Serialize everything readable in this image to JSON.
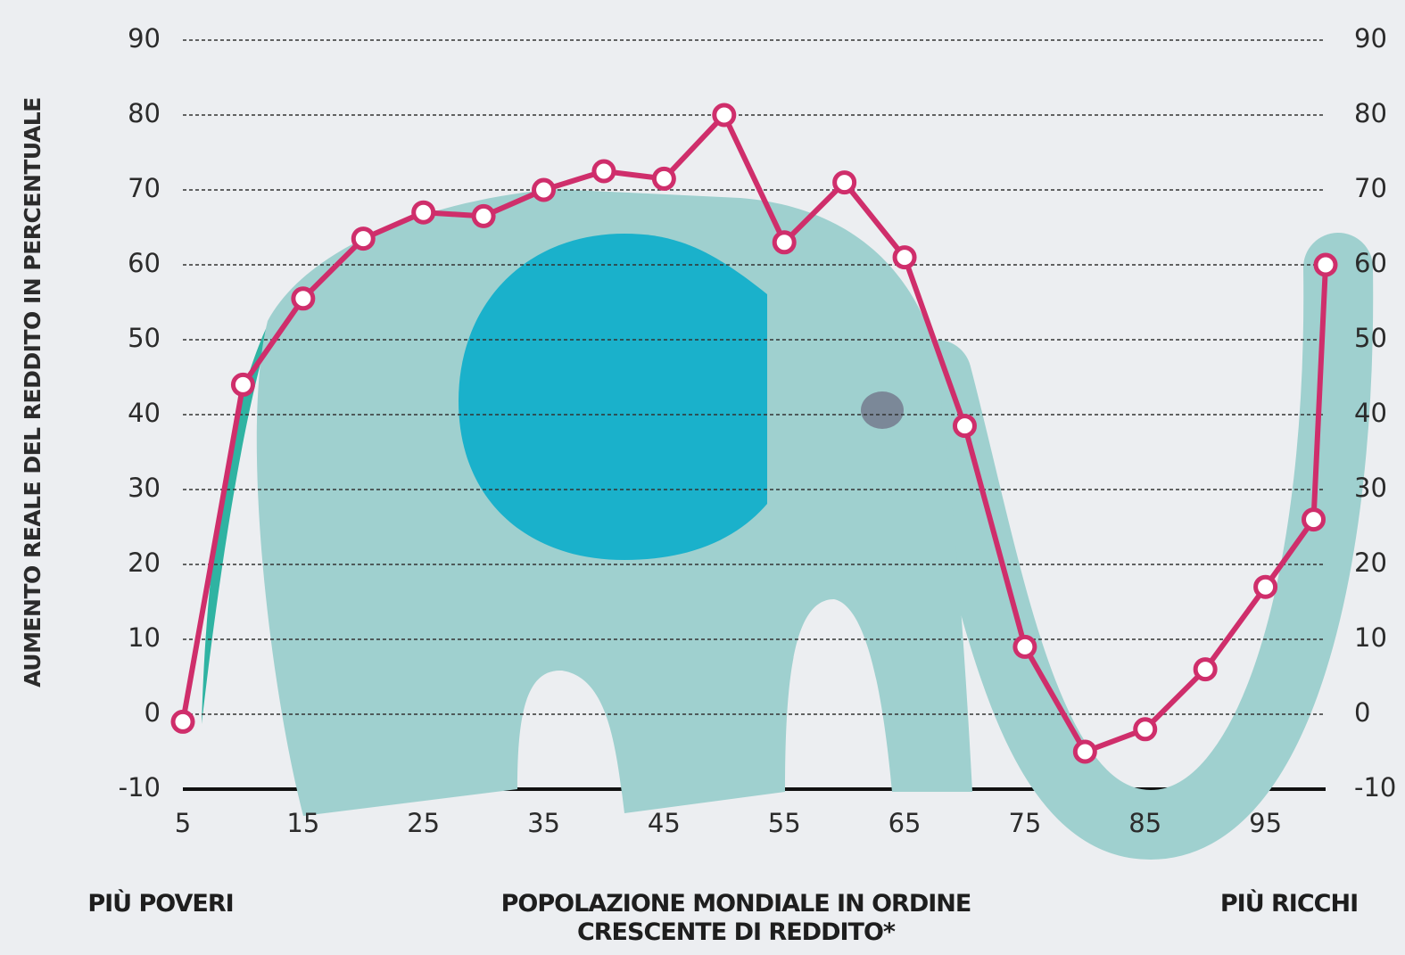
{
  "chart_data": {
    "type": "line",
    "y_label": "AUMENTO REALE DEL REDDITO IN PERCENTUALE",
    "x_label": "POPOLAZIONE MONDIALE IN ORDINE CRESCENTE DI REDDITO*",
    "annotations": [
      "PIÙ POVERI",
      "PIÙ RICCHI"
    ],
    "x": [
      5,
      10,
      15,
      20,
      25,
      30,
      35,
      40,
      45,
      50,
      55,
      60,
      65,
      70,
      75,
      80,
      85,
      90,
      95,
      99,
      100
    ],
    "series": [
      {
        "color": "#cf2e6b",
        "values": [
          -1,
          44,
          55.5,
          63.5,
          67,
          66.5,
          70,
          72.5,
          71.5,
          80,
          63,
          71,
          61,
          38.5,
          9,
          -5,
          -2,
          6,
          17,
          26,
          60
        ]
      }
    ],
    "xlim": [
      5,
      100
    ],
    "ylim": [
      -10,
      90
    ],
    "xticks": [
      5,
      15,
      25,
      35,
      45,
      55,
      65,
      75,
      85,
      95
    ],
    "yticks": [
      -10,
      0,
      10,
      20,
      30,
      40,
      50,
      60,
      70,
      80,
      90
    ],
    "grid": true
  }
}
